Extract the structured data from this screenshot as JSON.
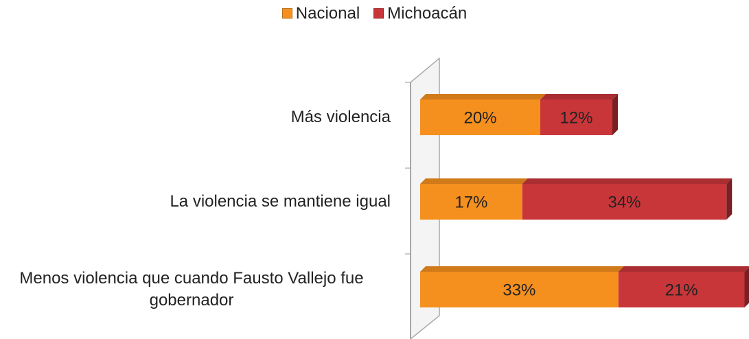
{
  "chart_data": {
    "type": "stacked-bar-horizontal",
    "categories": [
      "Más violencia",
      "La violencia se mantiene igual",
      "Menos violencia que cuando Fausto Vallejo fue gobernador"
    ],
    "series": [
      {
        "name": "Nacional",
        "color": "#f5901e",
        "values": [
          20,
          17,
          33
        ],
        "value_labels": [
          "20%",
          "17%",
          "33%"
        ]
      },
      {
        "name": "Michoacán",
        "color": "#c8363a",
        "values": [
          12,
          34,
          21
        ],
        "value_labels": [
          "12%",
          "34%",
          "21%"
        ]
      }
    ],
    "legend": "top"
  }
}
